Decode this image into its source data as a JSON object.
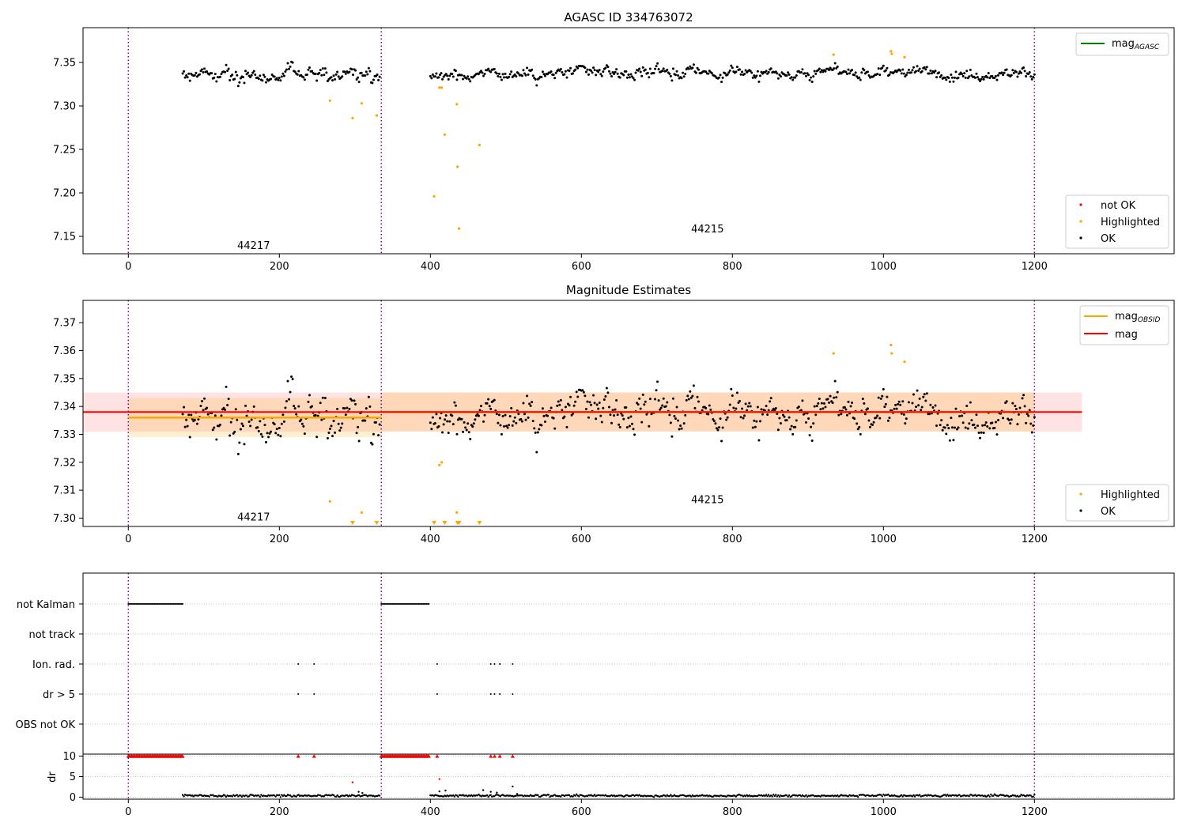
{
  "chart_data": [
    {
      "type": "scatter",
      "title": "AGASC ID 334763072",
      "xlim": [
        -60,
        1385
      ],
      "ylim": [
        7.13,
        7.39
      ],
      "x_ticks": [
        0,
        200,
        400,
        600,
        800,
        1000,
        1200
      ],
      "x_tick_labels": [
        "0",
        "200",
        "400",
        "600",
        "800",
        "1000",
        "1200"
      ],
      "y_ticks": [
        7.15,
        7.2,
        7.25,
        7.3,
        7.35
      ],
      "y_tick_labels": [
        "7.15",
        "7.20",
        "7.25",
        "7.30",
        "7.35"
      ],
      "obsid_boundaries": [
        0,
        335,
        1200
      ],
      "obsid_labels": [
        {
          "text": "44217",
          "x": 166,
          "y": 7.139
        },
        {
          "text": "44215",
          "x": 767,
          "y": 7.158
        }
      ],
      "legends": [
        {
          "position": "top-right",
          "entries": [
            {
              "name": "magAGASC",
              "label": "mag",
              "subscript": "AGASC",
              "color": "#008000",
              "marker": "line"
            }
          ]
        },
        {
          "position": "lower-right",
          "entries": [
            {
              "name": "not OK",
              "color": "#ff0000",
              "marker": "dot"
            },
            {
              "name": "Highlighted",
              "color": "#ffa500",
              "marker": "dot"
            },
            {
              "name": "OK",
              "color": "#000000",
              "marker": "dot"
            }
          ]
        }
      ],
      "highlighted_points": [
        [
          267,
          7.306
        ],
        [
          297,
          7.286
        ],
        [
          309,
          7.303
        ],
        [
          329,
          7.289
        ],
        [
          405,
          7.196
        ],
        [
          412,
          7.321
        ],
        [
          415,
          7.321
        ],
        [
          419,
          7.267
        ],
        [
          435,
          7.302
        ],
        [
          436,
          7.23
        ],
        [
          438,
          7.159
        ],
        [
          465,
          7.255
        ],
        [
          934,
          7.359
        ],
        [
          1010,
          7.363
        ],
        [
          1011,
          7.36
        ],
        [
          1028,
          7.356
        ]
      ],
      "ok_segments": [
        {
          "x_start": 72,
          "x_end": 333,
          "level": 7.337,
          "noise": 0.0075
        },
        {
          "x_start": 400,
          "x_end": 1200,
          "level": 7.338,
          "noise": 0.0065
        }
      ]
    },
    {
      "type": "scatter",
      "title": "Magnitude Estimates",
      "xlim": [
        -60,
        1385
      ],
      "ylim": [
        7.297,
        7.378
      ],
      "x_ticks": [
        0,
        200,
        400,
        600,
        800,
        1000,
        1200
      ],
      "x_tick_labels": [
        "0",
        "200",
        "400",
        "600",
        "800",
        "1000",
        "1200"
      ],
      "y_ticks": [
        7.3,
        7.31,
        7.32,
        7.33,
        7.34,
        7.35,
        7.36,
        7.37
      ],
      "y_tick_labels": [
        "7.30",
        "7.31",
        "7.32",
        "7.33",
        "7.34",
        "7.35",
        "7.36",
        "7.37"
      ],
      "obsid_boundaries": [
        0,
        335,
        1200
      ],
      "obsid_labels": [
        {
          "text": "44217",
          "x": 166,
          "y": 7.3002
        },
        {
          "text": "44215",
          "x": 767,
          "y": 7.3065
        }
      ],
      "mag_line": {
        "value": 7.338,
        "band": [
          7.331,
          7.345
        ],
        "x_range": [
          -60,
          1263
        ]
      },
      "mag_obsid": [
        {
          "x_start": 0,
          "x_end": 335,
          "value": 7.336,
          "band": [
            7.329,
            7.343
          ]
        },
        {
          "x_start": 335,
          "x_end": 1200,
          "value": 7.338,
          "band": [
            7.331,
            7.345
          ]
        }
      ],
      "legends": [
        {
          "position": "top-right",
          "entries": [
            {
              "name": "magOBSID",
              "label": "mag",
              "subscript": "OBSID",
              "color": "#ffa500",
              "marker": "line"
            },
            {
              "name": "mag",
              "label": "mag",
              "color": "#ff0000",
              "marker": "line"
            }
          ]
        },
        {
          "position": "lower-right",
          "entries": [
            {
              "name": "Highlighted",
              "color": "#ffa500",
              "marker": "dot"
            },
            {
              "name": "OK",
              "color": "#000000",
              "marker": "dot"
            }
          ]
        }
      ],
      "highlighted_points": [
        [
          267,
          7.306
        ],
        [
          309,
          7.302
        ],
        [
          412,
          7.319
        ],
        [
          415,
          7.32
        ],
        [
          435,
          7.302
        ],
        [
          934,
          7.359
        ],
        [
          1010,
          7.362
        ],
        [
          1011,
          7.359
        ],
        [
          1028,
          7.356
        ]
      ],
      "clipped_points_x": [
        297,
        329,
        405,
        419,
        436,
        438,
        465
      ],
      "ok_segments": [
        {
          "x_start": 72,
          "x_end": 333,
          "level": 7.337,
          "noise": 0.0075
        },
        {
          "x_start": 400,
          "x_end": 1200,
          "level": 7.338,
          "noise": 0.0065
        }
      ]
    },
    {
      "type": "scatter",
      "title": "",
      "xlim": [
        -60,
        1385
      ],
      "categories": [
        "not Kalman",
        "not track",
        "Ion. rad.",
        "dr > 5",
        "OBS not OK"
      ],
      "obsid_boundaries": [
        0,
        335,
        1200
      ],
      "flags": {
        "not Kalman": [
          [
            0,
            72
          ],
          [
            335,
            398
          ]
        ],
        "not track": [],
        "Ion. rad.": [
          225,
          246,
          409,
          480,
          485,
          492,
          509
        ],
        "dr > 5": [
          225,
          246,
          409,
          480,
          485,
          492,
          509
        ],
        "OBS not OK": []
      }
    },
    {
      "type": "scatter",
      "title": "",
      "ylabel": "dr",
      "xlim": [
        -60,
        1385
      ],
      "ylim": [
        -0.5,
        10.5
      ],
      "x_ticks": [
        0,
        200,
        400,
        600,
        800,
        1000,
        1200
      ],
      "x_tick_labels": [
        "0",
        "200",
        "400",
        "600",
        "800",
        "1000",
        "1200"
      ],
      "y_ticks": [
        0,
        5,
        10
      ],
      "y_tick_labels": [
        "0",
        "5",
        "10"
      ],
      "obsid_boundaries": [
        0,
        335,
        1200
      ],
      "clipped_red_ranges": [
        [
          0,
          72
        ],
        [
          335,
          398
        ]
      ],
      "clipped_red_points": [
        225,
        246,
        409,
        480,
        485,
        492,
        509
      ],
      "red_points": [
        [
          297,
          3.6
        ],
        [
          412,
          4.4
        ]
      ],
      "black_points": [
        [
          305,
          1.3
        ],
        [
          310,
          1.0
        ],
        [
          412,
          1.4
        ],
        [
          420,
          1.6
        ],
        [
          470,
          1.7
        ],
        [
          480,
          1.3
        ],
        [
          488,
          1.1
        ],
        [
          509,
          2.6
        ],
        [
          515,
          0.8
        ]
      ],
      "ok_segments": [
        {
          "x_start": 72,
          "x_end": 333,
          "level": 0.35,
          "noise": 0.25
        },
        {
          "x_start": 400,
          "x_end": 1200,
          "level": 0.35,
          "noise": 0.25
        }
      ]
    }
  ]
}
